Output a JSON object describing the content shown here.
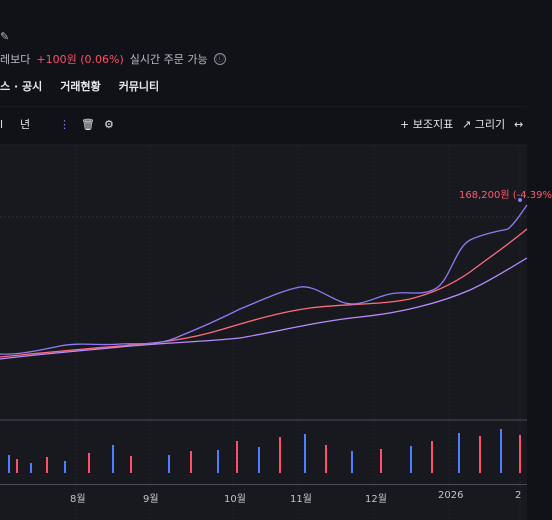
{
  "header": {
    "quote_prefix": "레보다",
    "change": "+100원 (0.06%)",
    "order_status": "실시간 주문 가능",
    "info_icon": "ⓘ"
  },
  "tabs": [
    "스 · 공시",
    "거래현황",
    "커뮤니티"
  ],
  "toolbar": {
    "left_items": [
      "l",
      "년"
    ],
    "indicator_label": "+ 보조지표",
    "draw_label": "↗ 그리기",
    "right_icon": "↔"
  },
  "chart_data": {
    "type": "candlestick",
    "x_tick_labels": [
      "8월",
      "9월",
      "10월",
      "11월",
      "12월",
      "2026",
      "2"
    ],
    "price_label": "168,200원 (-4.39%",
    "series": [
      {
        "name": "price",
        "color": "#8d7cf5"
      },
      {
        "name": "ma_short",
        "color": "#ff6b7c"
      },
      {
        "name": "ma_long",
        "color": "#b88cff"
      }
    ]
  }
}
